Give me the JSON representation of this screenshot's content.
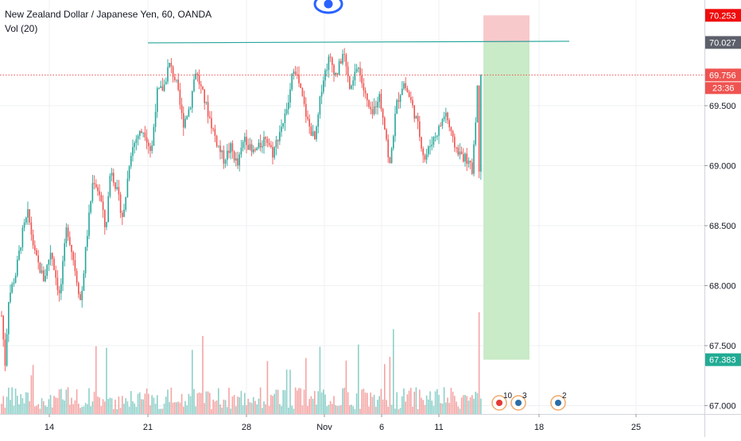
{
  "header": {
    "symbol_title": "New Zealand Dollar / Japanese Yen, 60, OANDA",
    "volume_indicator": "Vol (20)"
  },
  "colors": {
    "up": "#26a69a",
    "down": "#ef5350",
    "vol_up": "#8ed0c9",
    "vol_down": "#f4a5a4",
    "grid": "#eef0f3",
    "axis_text": "#131722",
    "stop_zone": "#f8c9ca",
    "target_zone": "#c9ebc7",
    "resistance_line": "#26a69a",
    "price_line": "#ef5350",
    "eye_icon": "#2962ff"
  },
  "price_scale": {
    "ticks": [
      "69.500",
      "69.000",
      "68.500",
      "68.000",
      "67.500",
      "67.000"
    ],
    "tag_stop": "70.253",
    "tag_entry": "70.027",
    "tag_last": "69.756",
    "tag_countdown": "23:36",
    "tag_target": "67.383"
  },
  "time_scale": {
    "ticks": [
      "14",
      "21",
      "28",
      "Nov",
      "6",
      "11",
      "18",
      "25"
    ]
  },
  "event_badges": [
    {
      "icon": "flag-event-icon",
      "count": "10"
    },
    {
      "icon": "flag-event-icon",
      "count": "3"
    },
    {
      "icon": "flag-event-icon",
      "count": "2"
    }
  ],
  "chart_data": {
    "type": "candlestick",
    "title": "New Zealand Dollar / Japanese Yen, 60, OANDA",
    "interval": "60",
    "ylim": [
      66.95,
      70.35
    ],
    "grid": true,
    "x_ticks": [
      "14",
      "21",
      "28",
      "Nov",
      "6",
      "11",
      "18",
      "25"
    ],
    "y_ticks": [
      67.0,
      67.5,
      68.0,
      68.5,
      69.0,
      69.5
    ],
    "last_price": 69.756,
    "resistance_level": 70.027,
    "position": {
      "type": "short",
      "entry": 70.027,
      "stop_loss": 70.253,
      "take_profit": 67.383
    },
    "close_path": [
      [
        0,
        67.75
      ],
      [
        2,
        67.35
      ],
      [
        4,
        67.9
      ],
      [
        8,
        68.1
      ],
      [
        12,
        68.45
      ],
      [
        15,
        68.6
      ],
      [
        19,
        68.25
      ],
      [
        24,
        68.05
      ],
      [
        28,
        68.3
      ],
      [
        33,
        67.9
      ],
      [
        37,
        68.5
      ],
      [
        41,
        68.2
      ],
      [
        45,
        67.85
      ],
      [
        48,
        68.35
      ],
      [
        52,
        68.9
      ],
      [
        56,
        68.75
      ],
      [
        59,
        68.45
      ],
      [
        62,
        69.0
      ],
      [
        66,
        68.75
      ],
      [
        69,
        68.55
      ],
      [
        73,
        69.1
      ],
      [
        77,
        69.25
      ],
      [
        81,
        69.3
      ],
      [
        85,
        69.1
      ],
      [
        88,
        69.6
      ],
      [
        92,
        69.65
      ],
      [
        95,
        69.85
      ],
      [
        99,
        69.7
      ],
      [
        103,
        69.35
      ],
      [
        107,
        69.5
      ],
      [
        110,
        69.8
      ],
      [
        114,
        69.6
      ],
      [
        118,
        69.4
      ],
      [
        122,
        69.2
      ],
      [
        126,
        69.05
      ],
      [
        130,
        69.15
      ],
      [
        134,
        69.0
      ],
      [
        138,
        69.25
      ],
      [
        142,
        69.1
      ],
      [
        146,
        69.15
      ],
      [
        150,
        69.25
      ],
      [
        154,
        69.1
      ],
      [
        158,
        69.3
      ],
      [
        162,
        69.45
      ],
      [
        166,
        69.85
      ],
      [
        170,
        69.6
      ],
      [
        174,
        69.35
      ],
      [
        178,
        69.2
      ],
      [
        182,
        69.7
      ],
      [
        186,
        69.9
      ],
      [
        190,
        69.75
      ],
      [
        194,
        69.95
      ],
      [
        198,
        69.6
      ],
      [
        202,
        69.85
      ],
      [
        206,
        69.6
      ],
      [
        210,
        69.4
      ],
      [
        214,
        69.6
      ],
      [
        218,
        69.3
      ],
      [
        220,
        68.95
      ],
      [
        224,
        69.5
      ],
      [
        228,
        69.7
      ],
      [
        232,
        69.55
      ],
      [
        236,
        69.35
      ],
      [
        240,
        69.05
      ],
      [
        244,
        69.2
      ],
      [
        248,
        69.3
      ],
      [
        252,
        69.45
      ],
      [
        256,
        69.2
      ],
      [
        260,
        69.1
      ],
      [
        264,
        69.05
      ],
      [
        267,
        68.95
      ],
      [
        269,
        69.4
      ],
      [
        271,
        69.85
      ],
      [
        272,
        69.75
      ]
    ],
    "volume_note": "Vol (20) histogram per bar"
  }
}
